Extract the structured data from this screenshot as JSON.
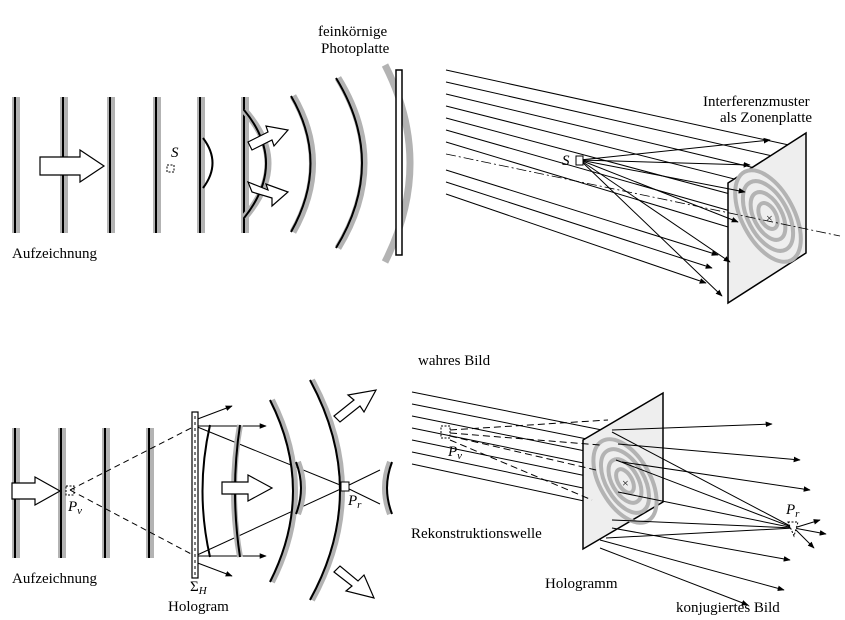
{
  "top_left": {
    "plate_label_1": "feinkörnige",
    "plate_label_2": "Photoplatte",
    "source": "S",
    "caption": "Aufzeichnung"
  },
  "top_right": {
    "title_1": "Interferenzmuster",
    "title_2": "als Zonenplatte",
    "source": "S"
  },
  "bottom_left": {
    "virtual_point": "P",
    "virtual_sub": "v",
    "real_point": "P",
    "real_sub": "r",
    "plate_symbol": "Σ",
    "plate_sub": "H",
    "plate_name": "Hologram",
    "caption": "Aufzeichnung"
  },
  "bottom_right": {
    "true_image": "wahres Bild",
    "virtual_point": "P",
    "virtual_sub": "v",
    "real_point": "P",
    "real_sub": "r",
    "reconstruction": "Rekonstruktionswelle",
    "hologram": "Hologramm",
    "conjugate_image": "konjugiertes Bild"
  },
  "colors": {
    "ink": "#000000",
    "wave_gray": "#b3b3b3",
    "plate_gray": "#eeeeee"
  }
}
